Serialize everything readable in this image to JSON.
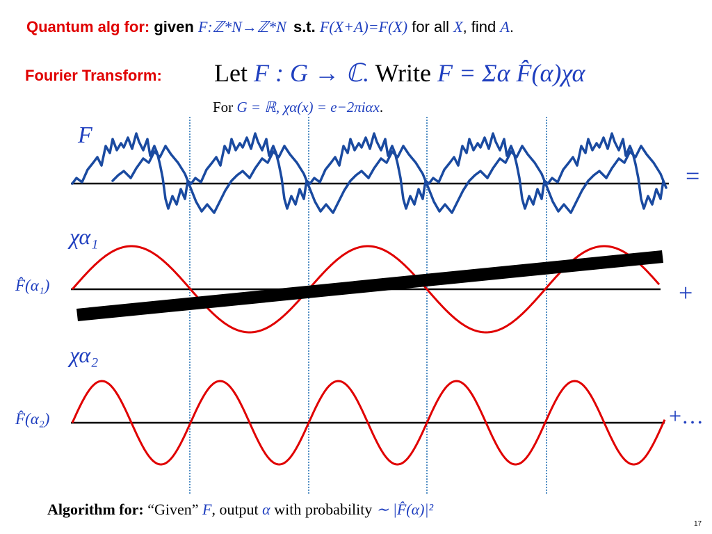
{
  "title": {
    "prefix": "Quantum alg for:",
    "given": "given",
    "map": "F:ℤ*N→ℤ*N",
    "st": "s.t.",
    "condition": "F(X+A)=F(X)",
    "for_all": "for all",
    "var_x": "X",
    "find": ", find",
    "var_a": "A",
    "period": "."
  },
  "fourier": {
    "label": "Fourier Transform:",
    "formula_let": "Let",
    "formula_map": "F : G → ℂ.",
    "formula_write": "Write",
    "formula_sum": "F = Σα F̂(α)χα",
    "sub_for": "For",
    "sub_formula": "G = ℝ, χα(x) = e−2πiαx",
    "sub_period": "."
  },
  "diagram": {
    "label_F": "F",
    "label_chi1": "χα₁",
    "label_chi2": "χα₂",
    "coef1": "F̂(α₁)",
    "coef2": "F̂(α₂)",
    "op_equals": "=",
    "op_plus": "+",
    "op_plus_dots": "+…",
    "colors": {
      "function": "#1a4aa0",
      "character": "#e00000",
      "guide": "#1a6ab0",
      "axis": "#000000",
      "bar": "#000000"
    }
  },
  "algorithm": {
    "label": "Algorithm for:",
    "given_q": "“Given”",
    "var_F": "F",
    "output": ", output",
    "var_alpha": "α",
    "with_prob": "with probability",
    "formula": "∼ |F̂(α)|²"
  },
  "page_number": "17"
}
